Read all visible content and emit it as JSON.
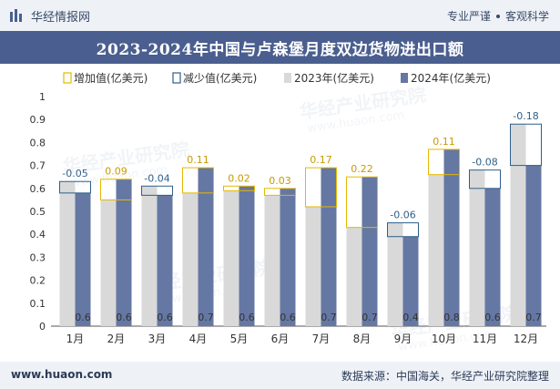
{
  "header": {
    "brand": "华经情报网",
    "tagline_left": "专业严谨",
    "tagline_right": "客观科学"
  },
  "footer": {
    "website": "www.huaon.com",
    "source": "数据来源：中国海关，华经产业研究院整理"
  },
  "watermark": {
    "text": "华经产业研究院",
    "url": "www.huaon.com"
  },
  "colors": {
    "title_bg": "#4a5f8f",
    "increase": "#e6b800",
    "decrease": "#2f5f8a",
    "series_2023": "#d9d9d9",
    "series_2024": "#6577a3"
  },
  "chart_data": {
    "type": "bar",
    "title": "2023-2024年中国与卢森堡月度双边货物进出口额",
    "categories": [
      "1月",
      "2月",
      "3月",
      "4月",
      "5月",
      "6月",
      "7月",
      "8月",
      "9月",
      "10月",
      "11月",
      "12月"
    ],
    "ylim": [
      0,
      1
    ],
    "yticks": [
      "0",
      "0.1",
      "0.2",
      "0.3",
      "0.4",
      "0.5",
      "0.6",
      "0.7",
      "0.8",
      "0.9",
      "1"
    ],
    "legend": [
      {
        "key": "increase",
        "label": "增加值(亿美元)"
      },
      {
        "key": "decrease",
        "label": "减少值(亿美元)"
      },
      {
        "key": "2023",
        "label": "2023年(亿美元)"
      },
      {
        "key": "2024",
        "label": "2024年(亿美元)"
      }
    ],
    "series": [
      {
        "name": "2023年(亿美元)",
        "values": [
          0.63,
          0.55,
          0.61,
          0.58,
          0.59,
          0.57,
          0.52,
          0.43,
          0.45,
          0.66,
          0.68,
          0.88
        ]
      },
      {
        "name": "2024年(亿美元)",
        "values": [
          0.58,
          0.64,
          0.57,
          0.69,
          0.61,
          0.6,
          0.69,
          0.65,
          0.39,
          0.77,
          0.6,
          0.7
        ]
      }
    ],
    "change": [
      -0.05,
      0.09,
      -0.04,
      0.11,
      0.02,
      0.03,
      0.17,
      0.22,
      -0.06,
      0.11,
      -0.08,
      -0.18
    ],
    "change_labels": [
      "-0.05",
      "0.09",
      "-0.04",
      "0.11",
      "0.02",
      "0.03",
      "0.17",
      "0.22",
      "-0.06",
      "0.11",
      "-0.08",
      "-0.18"
    ],
    "value_labels_2024": [
      "0.6",
      "0.6",
      "0.6",
      "0.7",
      "0.6",
      "0.6",
      "0.7",
      "0.7",
      "0.4",
      "0.8",
      "0.6",
      "0.7"
    ]
  }
}
